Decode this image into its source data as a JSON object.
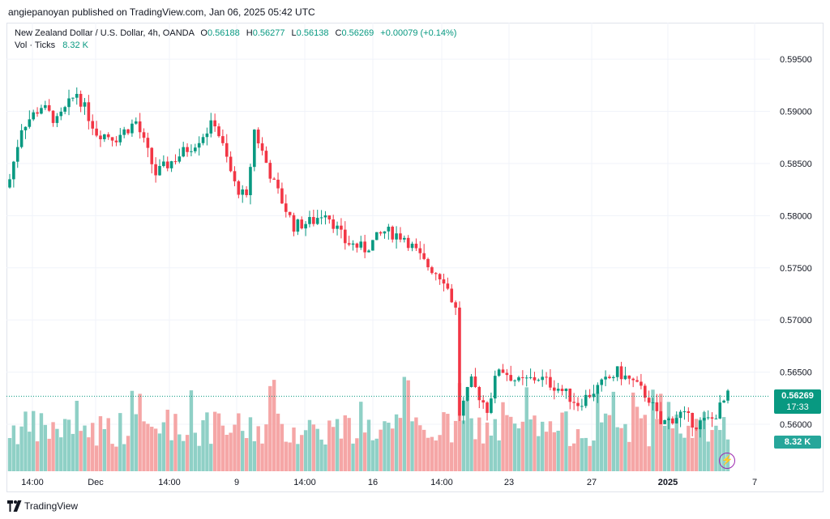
{
  "header": {
    "publisher_line": "angiepanoyan published on TradingView.com, Jan 06, 2025 05:42 UTC"
  },
  "legend": {
    "symbol": "New Zealand Dollar / U.S. Dollar, 4h, OANDA",
    "open_label": "O",
    "open": "0.56188",
    "high_label": "H",
    "high": "0.56277",
    "low_label": "L",
    "low": "0.56138",
    "close_label": "C",
    "close": "0.56269",
    "change": "+0.00079 (+0.14%)"
  },
  "volume_legend": {
    "label": "Vol · Ticks",
    "value": "8.32 K"
  },
  "price_axis": {
    "ticks": [
      "0.59500",
      "0.59000",
      "0.58500",
      "0.58000",
      "0.57500",
      "0.57000",
      "0.56500",
      "0.56000"
    ],
    "current_price": "0.56269",
    "countdown": "17:33",
    "volume_tag": "8.32 K"
  },
  "time_axis": {
    "ticks": [
      "14:00",
      "Dec",
      "14:00",
      "9",
      "14:00",
      "16",
      "14:00",
      "23",
      "27",
      "2025",
      "7"
    ]
  },
  "footer": {
    "brand": "TradingView"
  },
  "colors": {
    "up": "#089981",
    "down": "#f23645",
    "vol_up": "#8fd0c6",
    "vol_down": "#f5a6a6",
    "grid": "#f0f3fa"
  },
  "chart_data": {
    "type": "candlestick",
    "symbol": "NZDUSD",
    "interval": "4h",
    "ylim": [
      0.5555,
      0.5985
    ],
    "y_ticks": [
      0.595,
      0.59,
      0.585,
      0.58,
      0.575,
      0.57,
      0.565,
      0.56
    ],
    "grid": true,
    "anchors": [
      [
        0,
        0.5835
      ],
      [
        3,
        0.5885
      ],
      [
        8,
        0.5905
      ],
      [
        12,
        0.589
      ],
      [
        17,
        0.5918
      ],
      [
        22,
        0.588
      ],
      [
        27,
        0.5875
      ],
      [
        32,
        0.589
      ],
      [
        37,
        0.584
      ],
      [
        42,
        0.5855
      ],
      [
        47,
        0.587
      ],
      [
        52,
        0.589
      ],
      [
        57,
        0.583
      ],
      [
        60,
        0.5815
      ],
      [
        62,
        0.5882
      ],
      [
        67,
        0.583
      ],
      [
        72,
        0.579
      ],
      [
        77,
        0.5795
      ],
      [
        80,
        0.5805
      ],
      [
        85,
        0.5775
      ],
      [
        90,
        0.5768
      ],
      [
        95,
        0.5785
      ],
      [
        100,
        0.578
      ],
      [
        105,
        0.5755
      ],
      [
        110,
        0.574
      ],
      [
        113,
        0.571
      ],
      [
        114,
        0.561
      ],
      [
        117,
        0.564
      ],
      [
        121,
        0.5615
      ],
      [
        124,
        0.5655
      ],
      [
        129,
        0.564
      ],
      [
        134,
        0.5645
      ],
      [
        139,
        0.5635
      ],
      [
        144,
        0.562
      ],
      [
        149,
        0.5635
      ],
      [
        154,
        0.565
      ],
      [
        158,
        0.564
      ],
      [
        162,
        0.5625
      ],
      [
        165,
        0.56
      ],
      [
        170,
        0.561
      ],
      [
        174,
        0.56
      ],
      [
        178,
        0.5605
      ],
      [
        182,
        0.5627
      ]
    ],
    "volume_levels": [
      0.55,
      0.95,
      0.55
    ]
  }
}
